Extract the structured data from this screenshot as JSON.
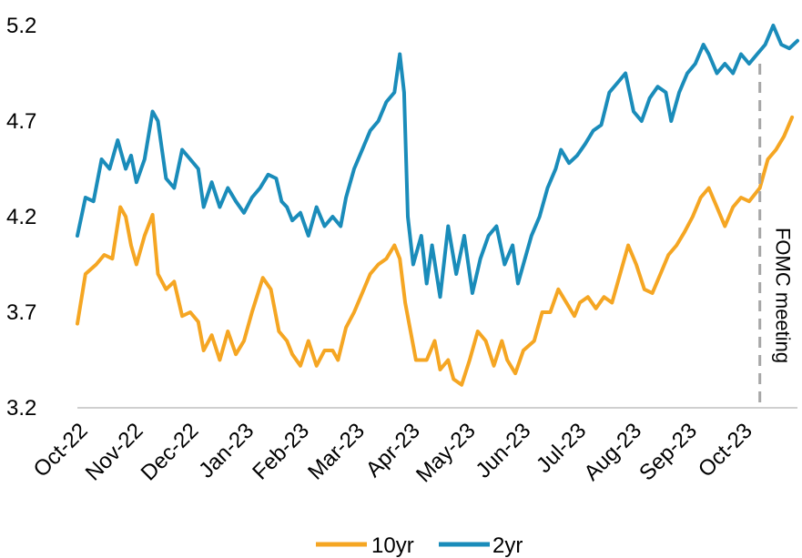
{
  "chart_data": {
    "type": "line",
    "title": "",
    "xlabel": "",
    "ylabel": "",
    "x_tick_labels": [
      "Oct-22",
      "Nov-22",
      "Dec-22",
      "Jan-23",
      "Feb-23",
      "Mar-23",
      "Apr-23",
      "May-23",
      "Jun-23",
      "Jul-23",
      "Aug-23",
      "Sep-23",
      "Oct-23"
    ],
    "y_tick_labels": [
      "5.2",
      "4.7",
      "4.2",
      "3.7",
      "3.2"
    ],
    "ylim": [
      3.2,
      5.2
    ],
    "grid": false,
    "legend_position": "bottom-center",
    "annotation": {
      "label": "FOMC meeting",
      "x": 12.7
    },
    "series": [
      {
        "name": "10yr",
        "color": "#f5a623",
        "points": [
          [
            0,
            3.64
          ],
          [
            0.15,
            3.9
          ],
          [
            0.35,
            3.95
          ],
          [
            0.5,
            4.0
          ],
          [
            0.65,
            3.98
          ],
          [
            0.8,
            4.25
          ],
          [
            0.9,
            4.2
          ],
          [
            1.0,
            4.05
          ],
          [
            1.1,
            3.95
          ],
          [
            1.25,
            4.1
          ],
          [
            1.4,
            4.21
          ],
          [
            1.5,
            3.9
          ],
          [
            1.65,
            3.82
          ],
          [
            1.8,
            3.86
          ],
          [
            1.95,
            3.68
          ],
          [
            2.1,
            3.7
          ],
          [
            2.25,
            3.65
          ],
          [
            2.35,
            3.5
          ],
          [
            2.5,
            3.58
          ],
          [
            2.65,
            3.45
          ],
          [
            2.8,
            3.6
          ],
          [
            2.95,
            3.48
          ],
          [
            3.1,
            3.55
          ],
          [
            3.25,
            3.7
          ],
          [
            3.45,
            3.88
          ],
          [
            3.6,
            3.82
          ],
          [
            3.75,
            3.6
          ],
          [
            3.9,
            3.55
          ],
          [
            4.0,
            3.48
          ],
          [
            4.15,
            3.42
          ],
          [
            4.3,
            3.55
          ],
          [
            4.45,
            3.42
          ],
          [
            4.6,
            3.5
          ],
          [
            4.75,
            3.5
          ],
          [
            4.85,
            3.45
          ],
          [
            5.0,
            3.62
          ],
          [
            5.15,
            3.7
          ],
          [
            5.3,
            3.8
          ],
          [
            5.45,
            3.9
          ],
          [
            5.6,
            3.95
          ],
          [
            5.75,
            3.98
          ],
          [
            5.9,
            4.05
          ],
          [
            6.0,
            3.98
          ],
          [
            6.1,
            3.75
          ],
          [
            6.2,
            3.6
          ],
          [
            6.3,
            3.45
          ],
          [
            6.5,
            3.45
          ],
          [
            6.65,
            3.55
          ],
          [
            6.75,
            3.4
          ],
          [
            6.9,
            3.45
          ],
          [
            7.0,
            3.35
          ],
          [
            7.15,
            3.32
          ],
          [
            7.3,
            3.45
          ],
          [
            7.45,
            3.6
          ],
          [
            7.6,
            3.55
          ],
          [
            7.75,
            3.42
          ],
          [
            7.9,
            3.55
          ],
          [
            8.0,
            3.45
          ],
          [
            8.15,
            3.38
          ],
          [
            8.3,
            3.5
          ],
          [
            8.5,
            3.55
          ],
          [
            8.65,
            3.7
          ],
          [
            8.8,
            3.7
          ],
          [
            8.95,
            3.82
          ],
          [
            9.1,
            3.75
          ],
          [
            9.25,
            3.68
          ],
          [
            9.35,
            3.75
          ],
          [
            9.5,
            3.78
          ],
          [
            9.65,
            3.72
          ],
          [
            9.8,
            3.78
          ],
          [
            9.95,
            3.75
          ],
          [
            10.1,
            3.9
          ],
          [
            10.25,
            4.05
          ],
          [
            10.4,
            3.95
          ],
          [
            10.55,
            3.82
          ],
          [
            10.7,
            3.8
          ],
          [
            10.85,
            3.9
          ],
          [
            11.0,
            4.0
          ],
          [
            11.15,
            4.05
          ],
          [
            11.3,
            4.12
          ],
          [
            11.45,
            4.2
          ],
          [
            11.6,
            4.3
          ],
          [
            11.75,
            4.35
          ],
          [
            11.9,
            4.25
          ],
          [
            12.05,
            4.15
          ],
          [
            12.2,
            4.25
          ],
          [
            12.35,
            4.3
          ],
          [
            12.5,
            4.28
          ],
          [
            12.7,
            4.35
          ],
          [
            12.85,
            4.5
          ],
          [
            13.0,
            4.55
          ],
          [
            13.15,
            4.62
          ],
          [
            13.3,
            4.72
          ]
        ]
      },
      {
        "name": "2yr",
        "color": "#1a8cba",
        "points": [
          [
            0,
            4.1
          ],
          [
            0.15,
            4.3
          ],
          [
            0.3,
            4.28
          ],
          [
            0.45,
            4.5
          ],
          [
            0.6,
            4.45
          ],
          [
            0.75,
            4.6
          ],
          [
            0.9,
            4.45
          ],
          [
            1.0,
            4.52
          ],
          [
            1.1,
            4.38
          ],
          [
            1.25,
            4.5
          ],
          [
            1.4,
            4.75
          ],
          [
            1.5,
            4.7
          ],
          [
            1.65,
            4.4
          ],
          [
            1.8,
            4.35
          ],
          [
            1.95,
            4.55
          ],
          [
            2.1,
            4.5
          ],
          [
            2.25,
            4.45
          ],
          [
            2.35,
            4.25
          ],
          [
            2.5,
            4.38
          ],
          [
            2.65,
            4.25
          ],
          [
            2.8,
            4.35
          ],
          [
            2.95,
            4.28
          ],
          [
            3.1,
            4.22
          ],
          [
            3.25,
            4.3
          ],
          [
            3.4,
            4.35
          ],
          [
            3.55,
            4.42
          ],
          [
            3.7,
            4.4
          ],
          [
            3.8,
            4.28
          ],
          [
            3.9,
            4.25
          ],
          [
            4.0,
            4.18
          ],
          [
            4.15,
            4.22
          ],
          [
            4.3,
            4.1
          ],
          [
            4.45,
            4.25
          ],
          [
            4.6,
            4.15
          ],
          [
            4.75,
            4.2
          ],
          [
            4.9,
            4.15
          ],
          [
            5.0,
            4.3
          ],
          [
            5.15,
            4.45
          ],
          [
            5.3,
            4.55
          ],
          [
            5.45,
            4.65
          ],
          [
            5.6,
            4.7
          ],
          [
            5.75,
            4.8
          ],
          [
            5.9,
            4.85
          ],
          [
            6.0,
            5.05
          ],
          [
            6.08,
            4.85
          ],
          [
            6.15,
            4.2
          ],
          [
            6.25,
            3.95
          ],
          [
            6.4,
            4.1
          ],
          [
            6.5,
            3.85
          ],
          [
            6.6,
            4.05
          ],
          [
            6.75,
            3.78
          ],
          [
            6.9,
            4.15
          ],
          [
            7.05,
            3.9
          ],
          [
            7.2,
            4.1
          ],
          [
            7.35,
            3.8
          ],
          [
            7.5,
            3.98
          ],
          [
            7.65,
            4.1
          ],
          [
            7.8,
            4.15
          ],
          [
            7.95,
            3.95
          ],
          [
            8.1,
            4.05
          ],
          [
            8.2,
            3.85
          ],
          [
            8.3,
            3.95
          ],
          [
            8.45,
            4.1
          ],
          [
            8.6,
            4.2
          ],
          [
            8.75,
            4.35
          ],
          [
            8.9,
            4.45
          ],
          [
            9.0,
            4.55
          ],
          [
            9.15,
            4.48
          ],
          [
            9.3,
            4.52
          ],
          [
            9.45,
            4.58
          ],
          [
            9.6,
            4.65
          ],
          [
            9.75,
            4.68
          ],
          [
            9.9,
            4.85
          ],
          [
            10.05,
            4.9
          ],
          [
            10.2,
            4.95
          ],
          [
            10.35,
            4.75
          ],
          [
            10.5,
            4.7
          ],
          [
            10.65,
            4.82
          ],
          [
            10.8,
            4.88
          ],
          [
            10.95,
            4.85
          ],
          [
            11.05,
            4.7
          ],
          [
            11.2,
            4.85
          ],
          [
            11.35,
            4.95
          ],
          [
            11.5,
            5.0
          ],
          [
            11.65,
            5.1
          ],
          [
            11.75,
            5.05
          ],
          [
            11.9,
            4.95
          ],
          [
            12.05,
            5.0
          ],
          [
            12.2,
            4.95
          ],
          [
            12.35,
            5.05
          ],
          [
            12.5,
            5.0
          ],
          [
            12.65,
            5.05
          ],
          [
            12.8,
            5.1
          ],
          [
            12.95,
            5.2
          ],
          [
            13.1,
            5.1
          ],
          [
            13.25,
            5.08
          ],
          [
            13.4,
            5.12
          ]
        ]
      }
    ]
  }
}
